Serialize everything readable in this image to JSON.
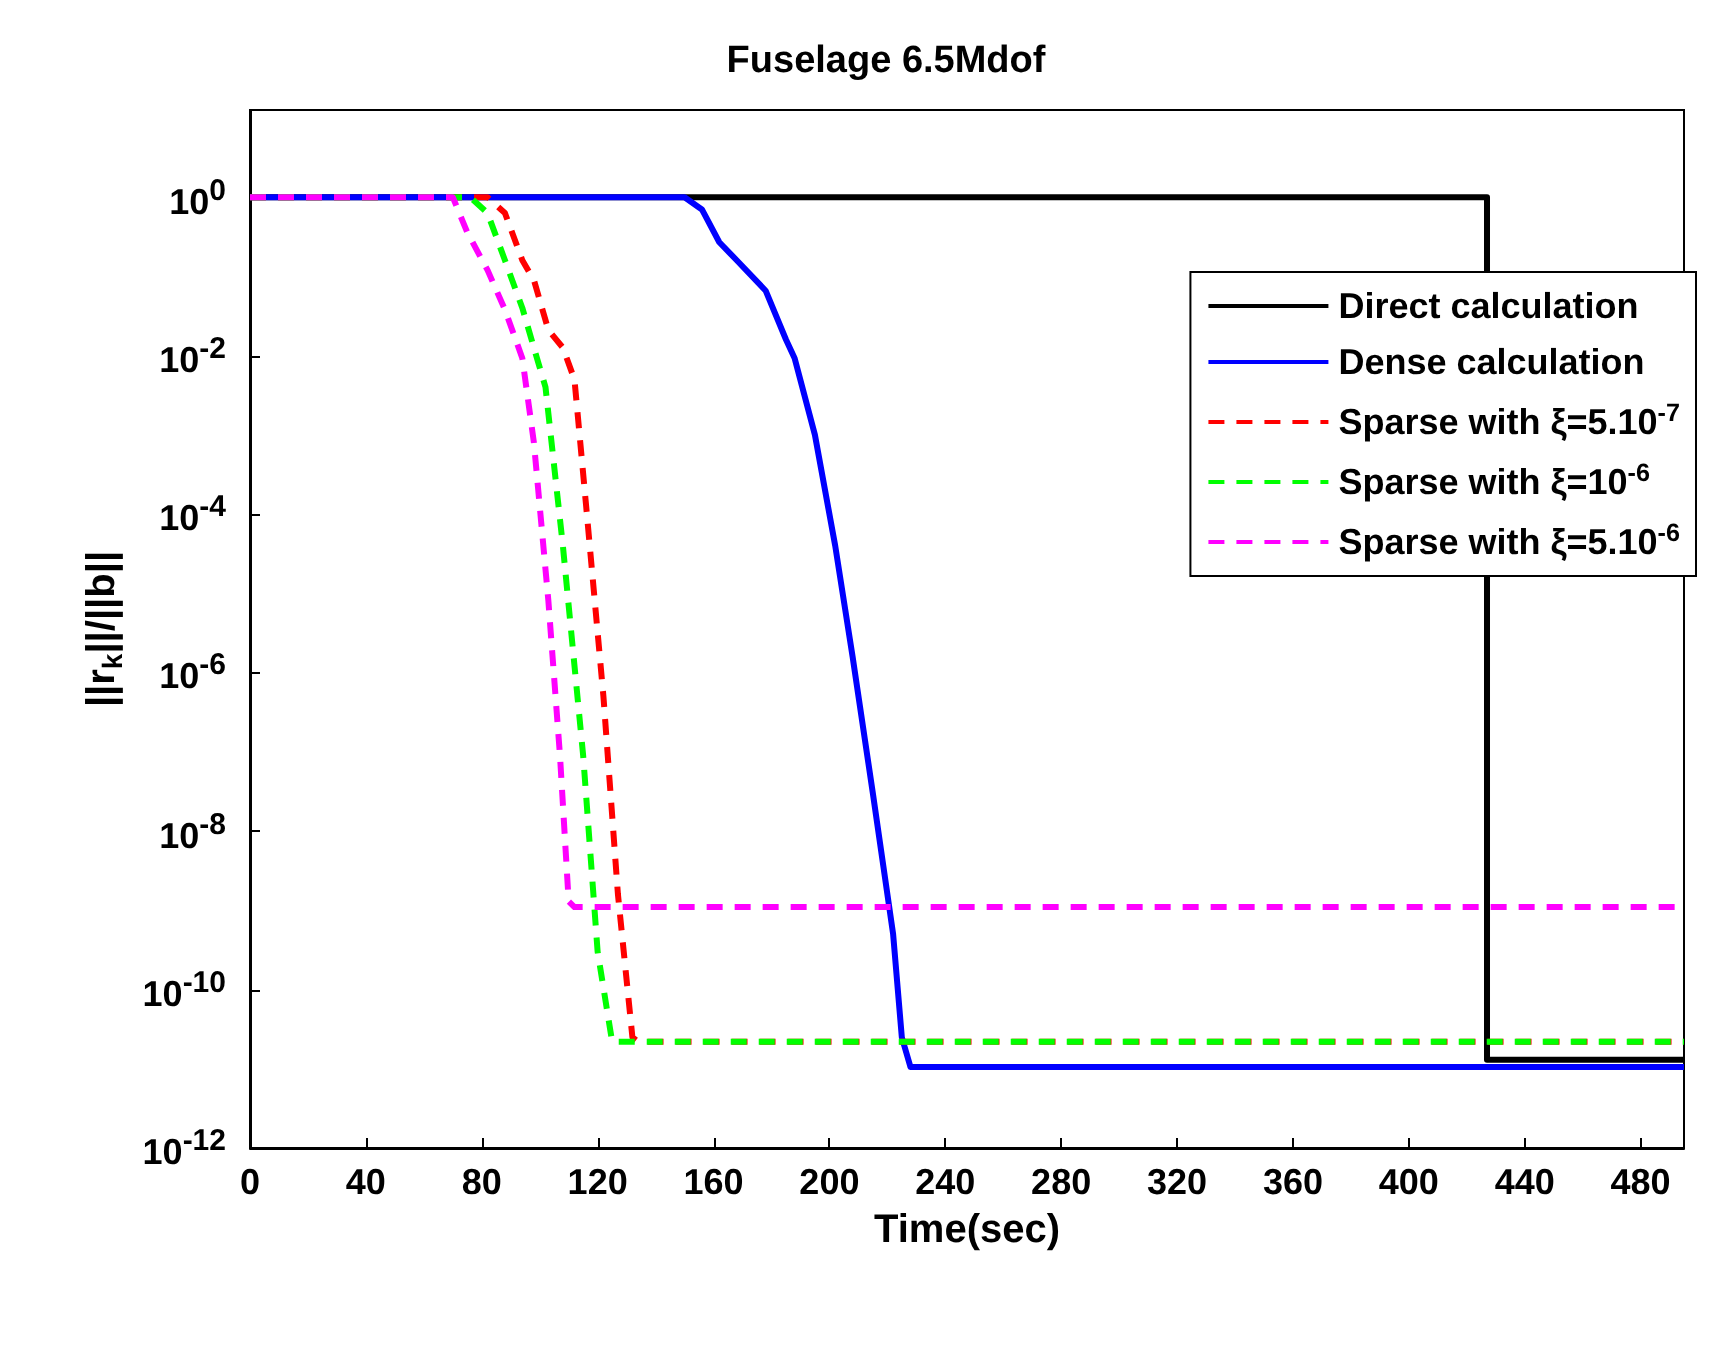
{
  "chart_data": {
    "type": "line",
    "title": "Fuselage 6.5Mdof",
    "xlabel": "Time(sec)",
    "ylabel": "||r$_{k}$||/||b||",
    "log": "y",
    "grid": false,
    "legend": "top right",
    "marker": "none",
    "xlim": [
      0,
      495
    ],
    "xticks": [
      0,
      40,
      80,
      120,
      160,
      200,
      240,
      280,
      320,
      360,
      400,
      440,
      480
    ],
    "ylim": [
      1e-12,
      12.6
    ],
    "yticks": [
      {
        "value": 1,
        "label": "10$^{0}$"
      },
      {
        "value": 0.01,
        "label": "10$^{-2}$"
      },
      {
        "value": 0.0001,
        "label": "10$^{-4}$"
      },
      {
        "value": 1e-06,
        "label": "10$^{-6}$"
      },
      {
        "value": 1e-08,
        "label": "10$^{-8}$"
      },
      {
        "value": 1e-10,
        "label": "10$^{-10}$"
      },
      {
        "value": 1e-12,
        "label": "10$^{-12}$"
      }
    ],
    "series": [
      {
        "name": "Direct calculation",
        "color": "#000000",
        "line_style": "solid",
        "x": [
          0,
          427,
          427,
          495
        ],
        "values": [
          1,
          1,
          1.3e-11,
          1.3e-11
        ]
      },
      {
        "name": "Dense calculation",
        "color": "#0000ff",
        "line_style": "solid",
        "x": [
          0,
          150,
          156,
          162,
          168,
          178,
          185,
          188,
          195,
          202,
          208,
          215,
          222,
          225,
          228,
          240,
          495
        ],
        "values": [
          1,
          1,
          0.7,
          0.27,
          0.16,
          0.066,
          0.016,
          0.0093,
          0.001,
          4e-05,
          1.6e-06,
          3e-08,
          5e-10,
          2.5e-11,
          1.05e-11,
          1.05e-11,
          1.05e-11
        ]
      },
      {
        "name": "Sparse with ξ=5.10$^{-7}$",
        "color": "#ff0000",
        "line_style": "dashed",
        "x": [
          0,
          82,
          88,
          94,
          98,
          103,
          108,
          112,
          116,
          122,
          127,
          132,
          134,
          495
        ],
        "values": [
          1,
          1,
          0.63,
          0.16,
          0.09,
          0.021,
          0.0126,
          0.005,
          0.00013,
          5e-07,
          1.6e-09,
          2.5e-11,
          2.2e-11,
          2.2e-11
        ]
      },
      {
        "name": "Sparse with ξ=10$^{-6}$",
        "color": "#00ff00",
        "line_style": "dashed",
        "x": [
          0,
          76,
          82,
          88,
          94,
          98,
          102,
          108,
          115,
          120,
          125,
          495
        ],
        "values": [
          1,
          1,
          0.63,
          0.16,
          0.04,
          0.0126,
          0.004,
          4e-05,
          9e-08,
          3e-10,
          2.2e-11,
          2.2e-11
        ]
      },
      {
        "name": "Sparse with ξ=5.10$^{-6}$",
        "color": "#ff00ff",
        "line_style": "dashed",
        "x": [
          0,
          70,
          75,
          82,
          88,
          94,
          98,
          103,
          107,
          110,
          112,
          495
        ],
        "values": [
          1,
          1,
          0.36,
          0.12,
          0.038,
          0.0093,
          0.0008,
          8e-06,
          9e-08,
          1.3e-09,
          1.1e-09,
          1.1e-09
        ]
      }
    ]
  }
}
